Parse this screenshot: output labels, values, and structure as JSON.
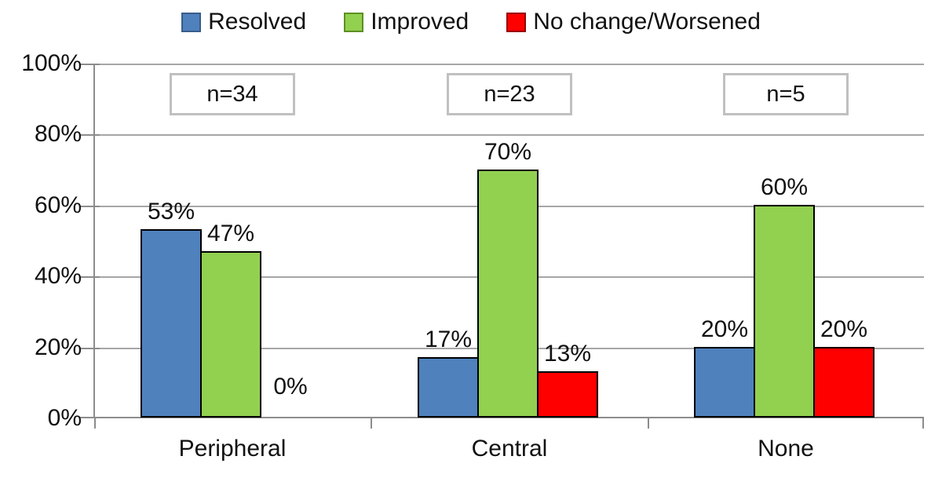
{
  "chart_data": {
    "type": "bar",
    "title": "",
    "categories": [
      "Peripheral",
      "Central",
      "None"
    ],
    "series": [
      {
        "name": "Resolved",
        "color": "#4F81BD",
        "legend_border": "#385D8A",
        "values": [
          53,
          17,
          20
        ],
        "labels": [
          "53%",
          "17%",
          "20%"
        ]
      },
      {
        "name": "Improved",
        "color": "#92D050",
        "legend_border": "#5E8F22",
        "values": [
          47,
          70,
          60
        ],
        "labels": [
          "47%",
          "70%",
          "60%"
        ]
      },
      {
        "name": "No change/Worsened",
        "color": "#FF0000",
        "legend_border": "#990000",
        "values": [
          0,
          13,
          20
        ],
        "labels": [
          "0%",
          "13%",
          "20%"
        ]
      }
    ],
    "group_counts": [
      "n=34",
      "n=23",
      "n=5"
    ],
    "y_ticks": [
      "100%",
      "80%",
      "60%",
      "40%",
      "20%",
      "0%"
    ],
    "ylim": [
      0,
      100
    ],
    "grid": true,
    "legend_position": "top",
    "bar_border_color": "#000000",
    "gridline_color": "#A6A6A6",
    "axis_color": "#8C8C8C",
    "nbox_border_color": "#C0C0C0",
    "text_color": "#111111"
  }
}
